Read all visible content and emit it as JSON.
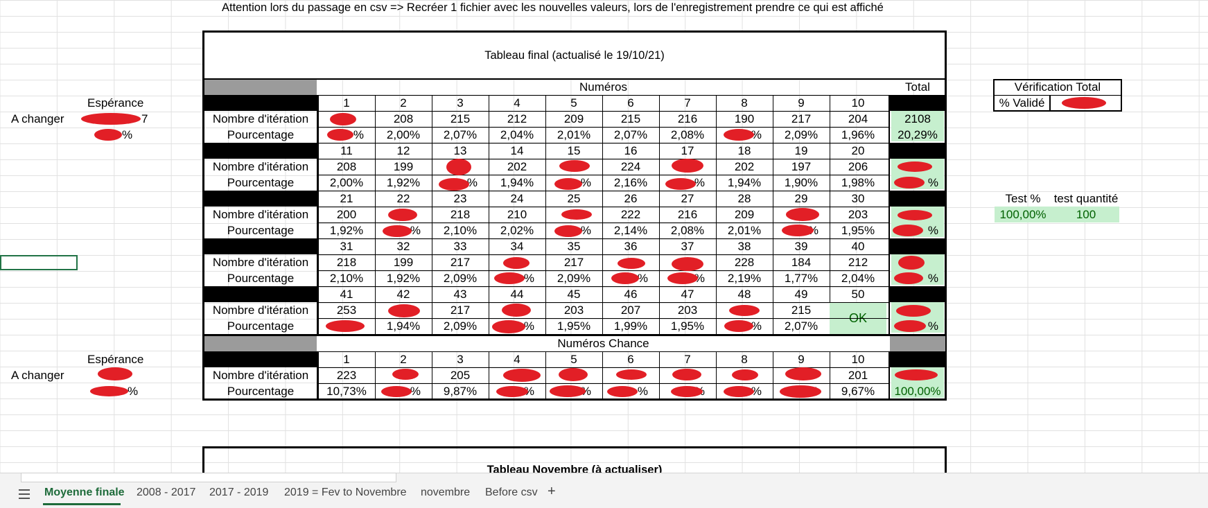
{
  "banner": "Attention lors du passage en csv => Recréer 1 fichier avec les nouvelles valeurs, lors de l'enregistrement prendre ce qui est affiché",
  "table_title": "Tableau final (actualisé le 19/10/21)",
  "table2_title": "Tableau Novembre (à actualiser)",
  "numeros_header": "Numéros",
  "chance_header": "Numéros Chance",
  "total_header": "Total",
  "row_iter": "Nombre d'itération",
  "row_pct": "Pourcentage",
  "left": {
    "esperance": "Espérance",
    "a_changer": "A changer",
    "redact_tail_1": "7",
    "redact_tail_2": "%",
    "redact_tail_3": "%"
  },
  "verification": {
    "title": "Vérification Total",
    "label": "% Validé"
  },
  "tests": {
    "test_pct_label": "Test %",
    "test_qty_label": "test quantité",
    "test_pct_value": "100,00%",
    "test_qty_value": "100"
  },
  "blocks": [
    {
      "nums": [
        "1",
        "2",
        "3",
        "4",
        "5",
        "6",
        "7",
        "8",
        "9",
        "10"
      ],
      "iter": [
        "",
        "208",
        "215",
        "212",
        "209",
        "215",
        "216",
        "190",
        "217",
        "204"
      ],
      "pct": [
        "%",
        "2,00%",
        "2,07%",
        "2,04%",
        "2,01%",
        "2,07%",
        "2,08%",
        "%",
        "2,09%",
        "1,96%"
      ],
      "total_iter": "2108",
      "total_pct": "20,29%"
    },
    {
      "nums": [
        "11",
        "12",
        "13",
        "14",
        "15",
        "16",
        "17",
        "18",
        "19",
        "20"
      ],
      "iter": [
        "208",
        "199",
        "",
        "202",
        "",
        "224",
        "",
        "202",
        "197",
        "206"
      ],
      "pct": [
        "2,00%",
        "1,92%",
        "%",
        "1,94%",
        "%",
        "2,16%",
        "%",
        "1,94%",
        "1,90%",
        "1,98%"
      ],
      "total_iter": "",
      "total_pct": "%"
    },
    {
      "nums": [
        "21",
        "22",
        "23",
        "24",
        "25",
        "26",
        "27",
        "28",
        "29",
        "30"
      ],
      "iter": [
        "200",
        "",
        "218",
        "210",
        "",
        "222",
        "216",
        "209",
        "",
        "203"
      ],
      "pct": [
        "1,92%",
        "%",
        "2,10%",
        "2,02%",
        "%",
        "2,14%",
        "2,08%",
        "2,01%",
        "%",
        "1,95%"
      ],
      "total_iter": "",
      "total_pct": "%"
    },
    {
      "nums": [
        "31",
        "32",
        "33",
        "34",
        "35",
        "36",
        "37",
        "38",
        "39",
        "40"
      ],
      "iter": [
        "218",
        "199",
        "217",
        "",
        "217",
        "",
        "",
        "228",
        "184",
        "212"
      ],
      "pct": [
        "2,10%",
        "1,92%",
        "2,09%",
        "%",
        "2,09%",
        "%",
        "%",
        "2,19%",
        "1,77%",
        "2,04%"
      ],
      "total_iter": "",
      "total_pct": "%"
    },
    {
      "nums": [
        "41",
        "42",
        "43",
        "44",
        "45",
        "46",
        "47",
        "48",
        "49",
        "50"
      ],
      "iter": [
        "253",
        "",
        "217",
        "",
        "203",
        "207",
        "203",
        "",
        "215",
        ""
      ],
      "pct": [
        "",
        "1,94%",
        "2,09%",
        "%",
        "1,95%",
        "1,99%",
        "1,95%",
        "%",
        "2,07%",
        ""
      ],
      "total_iter": "",
      "total_pct": "%",
      "ok_label": "OK"
    },
    {
      "nums": [
        "1",
        "2",
        "3",
        "4",
        "5",
        "6",
        "7",
        "8",
        "9",
        "10"
      ],
      "iter": [
        "223",
        "",
        "205",
        "",
        "",
        "",
        "",
        "",
        "",
        "201"
      ],
      "pct": [
        "10,73%",
        "%",
        "9,87%",
        "%",
        "%",
        "%",
        "%",
        "%",
        "%",
        "9,67%"
      ],
      "total_iter": "",
      "total_pct": "100,00%"
    }
  ],
  "tabs": [
    "Moyenne finale",
    "2008 - 2017",
    "2017 - 2019",
    "2019 = Fev to Novembre",
    "novembre",
    "Before csv"
  ],
  "tab_add": "+",
  "tab_menu_icon": "hamburger-menu-icon",
  "colors": {
    "green_fill": "#c6efce",
    "green_text": "#006100",
    "header_black": "#000000",
    "header_gray": "#9b9b9b",
    "redaction": "#e21f26",
    "active_tab": "#1e6b3a"
  }
}
